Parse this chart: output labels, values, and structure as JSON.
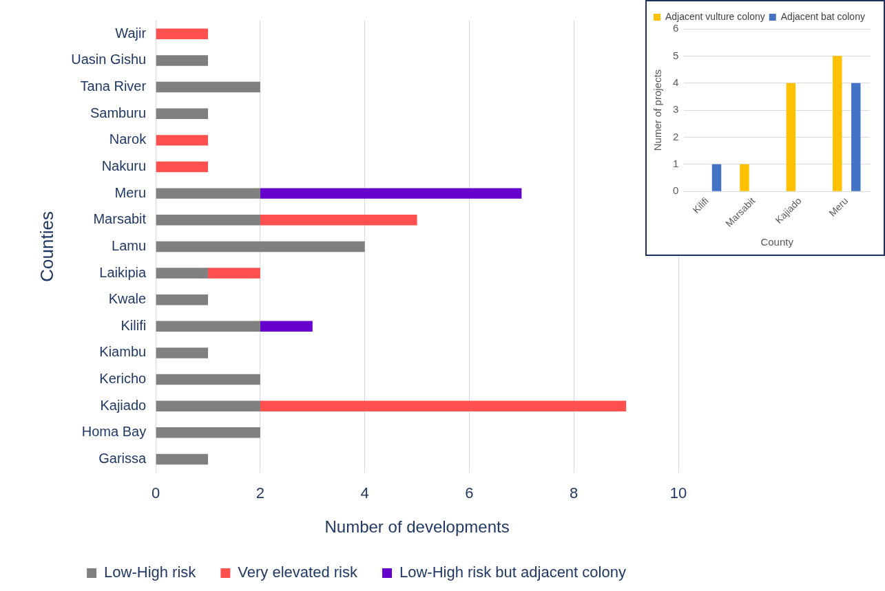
{
  "chart_data": [
    {
      "type": "bar",
      "orientation": "horizontal",
      "stacked": true,
      "xlabel": "Number of developments",
      "ylabel": "Counties",
      "categories": [
        "Wajir",
        "Uasin Gishu",
        "Tana River",
        "Samburu",
        "Narok",
        "Nakuru",
        "Meru",
        "Marsabit",
        "Lamu",
        "Laikipia",
        "Kwale",
        "Kilifi",
        "Kiambu",
        "Kericho",
        "Kajiado",
        "Homa Bay",
        "Garissa"
      ],
      "series": [
        {
          "name": "Low-High risk",
          "color": "#808080",
          "values": [
            null,
            1,
            2,
            1,
            null,
            null,
            2,
            2,
            4,
            1,
            1,
            2,
            1,
            2,
            2,
            2,
            1
          ]
        },
        {
          "name": "Very elevated risk",
          "color": "#ff5050",
          "values": [
            1,
            null,
            null,
            null,
            1,
            1,
            null,
            3,
            null,
            1,
            null,
            null,
            null,
            null,
            7,
            null,
            null
          ]
        },
        {
          "name": "Low-High risk but adjacent colony",
          "color": "#6600cc",
          "values": [
            null,
            null,
            null,
            null,
            null,
            null,
            5,
            null,
            null,
            null,
            null,
            1,
            null,
            null,
            null,
            null,
            null
          ]
        }
      ],
      "xlim": [
        0,
        10
      ],
      "xticks": [
        0,
        2,
        4,
        6,
        8,
        10
      ],
      "grid": "x",
      "legend": "bottom"
    },
    {
      "type": "bar",
      "xlabel": "County",
      "ylabel": "Numer of projects",
      "categories": [
        "Kilifi",
        "Marsabit",
        "Kajiado",
        "Meru"
      ],
      "series": [
        {
          "name": "Adjacent vulture colony",
          "color": "#ffc000",
          "values": [
            null,
            1,
            4,
            5
          ]
        },
        {
          "name": "Adjacent bat colony",
          "color": "#4472c4",
          "values": [
            1,
            null,
            null,
            4
          ]
        }
      ],
      "ylim": [
        0,
        6
      ],
      "yticks": [
        0,
        1,
        2,
        3,
        4,
        5,
        6
      ],
      "grid": "y",
      "legend": "top left"
    }
  ]
}
